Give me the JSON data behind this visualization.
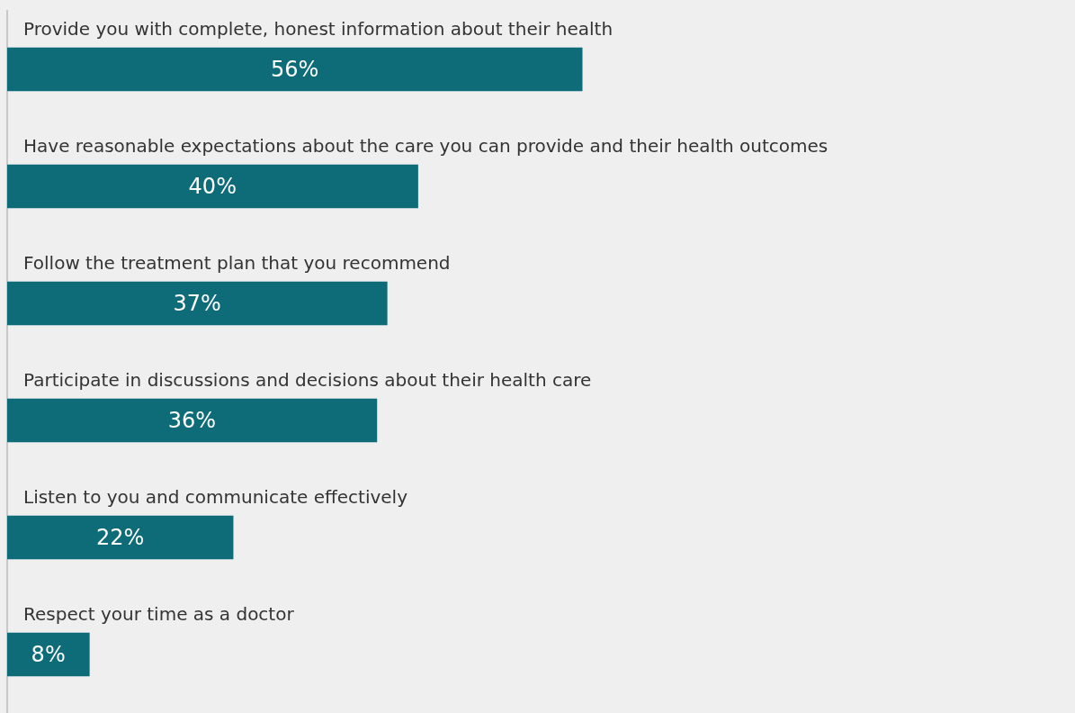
{
  "chart_data": {
    "type": "bar",
    "orientation": "horizontal",
    "categories": [
      "Provide you with complete, honest information about their health",
      "Have reasonable expectations about the care you can provide and their health outcomes",
      "Follow the treatment plan that you recommend",
      "Participate in discussions and decisions about their health care",
      "Listen to you and communicate effectively",
      "Respect your time as a doctor"
    ],
    "values": [
      56,
      40,
      37,
      36,
      22,
      8
    ],
    "value_labels": [
      "56%",
      "40%",
      "37%",
      "36%",
      "22%",
      "8%"
    ],
    "color": "#0e6b78",
    "xlim": [
      0,
      104
    ],
    "grid": false,
    "legend": false
  }
}
